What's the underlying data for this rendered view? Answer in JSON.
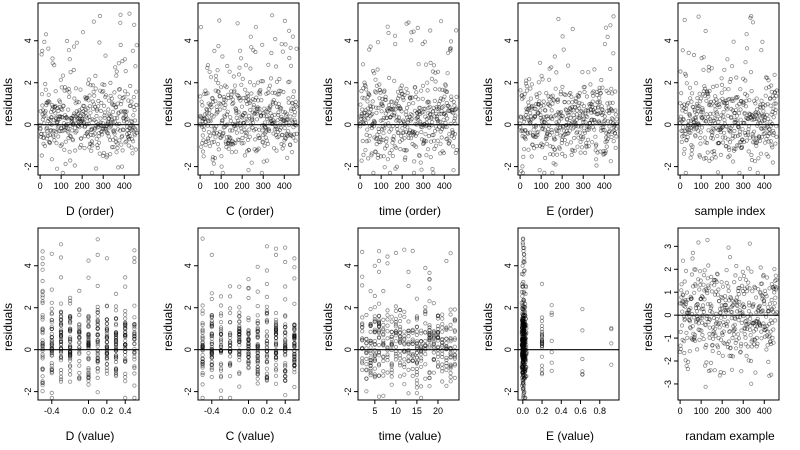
{
  "chart_data": [
    {
      "type": "scatter",
      "xlabel": "D (order)",
      "ylabel": "residuals",
      "xlim": [
        -10,
        470
      ],
      "ylim": [
        -2.4,
        5.8
      ],
      "xticks": [
        0,
        100,
        200,
        300,
        400
      ],
      "yticks": [
        -2,
        0,
        2,
        4
      ],
      "zero_line": true,
      "mode": "order",
      "n": 460,
      "seed": 11
    },
    {
      "type": "scatter",
      "xlabel": "C (order)",
      "ylabel": "residuals",
      "xlim": [
        -10,
        470
      ],
      "ylim": [
        -2.4,
        5.8
      ],
      "xticks": [
        0,
        100,
        200,
        300,
        400
      ],
      "yticks": [
        -2,
        0,
        2,
        4
      ],
      "zero_line": true,
      "mode": "order",
      "n": 460,
      "seed": 22
    },
    {
      "type": "scatter",
      "xlabel": "time (order)",
      "ylabel": "residuals",
      "xlim": [
        -10,
        470
      ],
      "ylim": [
        -2.4,
        5.8
      ],
      "xticks": [
        0,
        100,
        200,
        300,
        400
      ],
      "yticks": [
        -2,
        0,
        2,
        4
      ],
      "zero_line": true,
      "mode": "order",
      "n": 460,
      "seed": 33
    },
    {
      "type": "scatter",
      "xlabel": "E (order)",
      "ylabel": "residuals",
      "xlim": [
        -10,
        470
      ],
      "ylim": [
        -2.4,
        5.8
      ],
      "xticks": [
        0,
        100,
        200,
        300,
        400
      ],
      "yticks": [
        -2,
        0,
        2,
        4
      ],
      "zero_line": true,
      "mode": "order",
      "n": 460,
      "seed": 44
    },
    {
      "type": "scatter",
      "xlabel": "sample index",
      "ylabel": "residuals",
      "xlim": [
        -10,
        470
      ],
      "ylim": [
        -2.4,
        5.8
      ],
      "xticks": [
        0,
        100,
        200,
        300,
        400
      ],
      "yticks": [
        -2,
        0,
        2,
        4
      ],
      "zero_line": true,
      "mode": "order",
      "n": 460,
      "seed": 55
    },
    {
      "type": "scatter",
      "xlabel": "D (value)",
      "ylabel": "residuals",
      "xlim": [
        -0.55,
        0.55
      ],
      "ylim": [
        -2.4,
        5.8
      ],
      "xticks": [
        -0.4,
        0.0,
        0.2,
        0.4
      ],
      "yticks": [
        -2,
        0,
        2,
        4
      ],
      "zero_line": true,
      "mode": "value",
      "n": 460,
      "seed": 66,
      "x_columns": [
        -0.5,
        -0.4,
        -0.3,
        -0.2,
        -0.1,
        0.0,
        0.1,
        0.2,
        0.3,
        0.4,
        0.5
      ]
    },
    {
      "type": "scatter",
      "xlabel": "C (value)",
      "ylabel": "residuals",
      "xlim": [
        -0.55,
        0.55
      ],
      "ylim": [
        -2.4,
        5.8
      ],
      "xticks": [
        -0.4,
        0.0,
        0.2,
        0.4
      ],
      "yticks": [
        -2,
        0,
        2,
        4
      ],
      "zero_line": true,
      "mode": "value",
      "n": 460,
      "seed": 77,
      "x_columns": [
        -0.5,
        -0.4,
        -0.3,
        -0.2,
        -0.1,
        0.0,
        0.1,
        0.2,
        0.3,
        0.4,
        0.5
      ]
    },
    {
      "type": "scatter",
      "xlabel": "time (value)",
      "ylabel": "residuals",
      "xlim": [
        1,
        25
      ],
      "ylim": [
        -2.4,
        5.8
      ],
      "xticks": [
        5,
        10,
        15,
        20
      ],
      "yticks": [
        -2,
        0,
        2,
        4
      ],
      "zero_line": true,
      "mode": "value",
      "n": 460,
      "seed": 88,
      "x_columns": [
        2,
        3,
        4,
        5,
        6,
        7,
        8,
        9,
        10,
        11,
        12,
        13,
        14,
        15,
        16,
        17,
        18,
        19,
        20,
        21,
        22,
        23,
        24
      ]
    },
    {
      "type": "scatter",
      "xlabel": "E (value)",
      "ylabel": "residuals",
      "xlim": [
        -0.05,
        1.0
      ],
      "ylim": [
        -2.4,
        5.8
      ],
      "xticks": [
        0.0,
        0.2,
        0.4,
        0.6,
        0.8
      ],
      "yticks": [
        -2,
        0,
        2,
        4
      ],
      "zero_line": true,
      "mode": "skewed",
      "n": 460,
      "seed": 99,
      "x_columns": [
        0.0,
        0.01,
        0.02,
        0.03,
        0.2,
        0.3,
        0.62,
        0.92
      ],
      "weights": [
        0.45,
        0.25,
        0.12,
        0.08,
        0.05,
        0.02,
        0.02,
        0.01
      ]
    },
    {
      "type": "scatter",
      "xlabel": "randam example",
      "ylabel": "residuals",
      "xlim": [
        -10,
        470
      ],
      "ylim": [
        -3.7,
        3.8
      ],
      "xticks": [
        0,
        100,
        200,
        300,
        400
      ],
      "yticks": [
        -3,
        -2,
        -1,
        0,
        1,
        2,
        3
      ],
      "zero_line": true,
      "mode": "random",
      "n": 460,
      "seed": 123
    }
  ]
}
